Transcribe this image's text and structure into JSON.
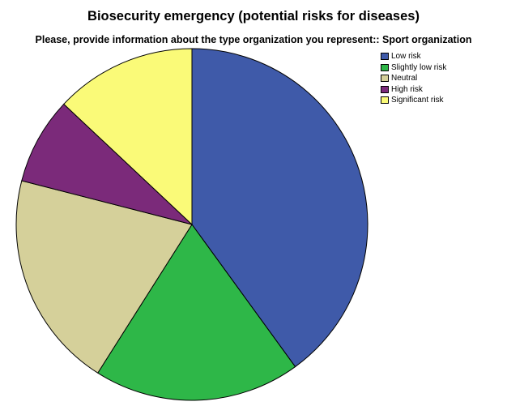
{
  "chart_data": {
    "type": "pie",
    "title": "Biosecurity emergency (potential risks for diseases)",
    "subtitle": "Please, provide information about the type organization you represent:: Sport organization",
    "categories": [
      "Low risk",
      "Slightly low risk",
      "Neutral",
      "High risk",
      "Significant risk"
    ],
    "values": [
      40.0,
      19.0,
      20.0,
      8.0,
      13.0
    ],
    "colors": [
      "#3f5aa9",
      "#2eb748",
      "#d5d09a",
      "#7b2a7a",
      "#fafa78"
    ],
    "legend_position": "top-right"
  }
}
